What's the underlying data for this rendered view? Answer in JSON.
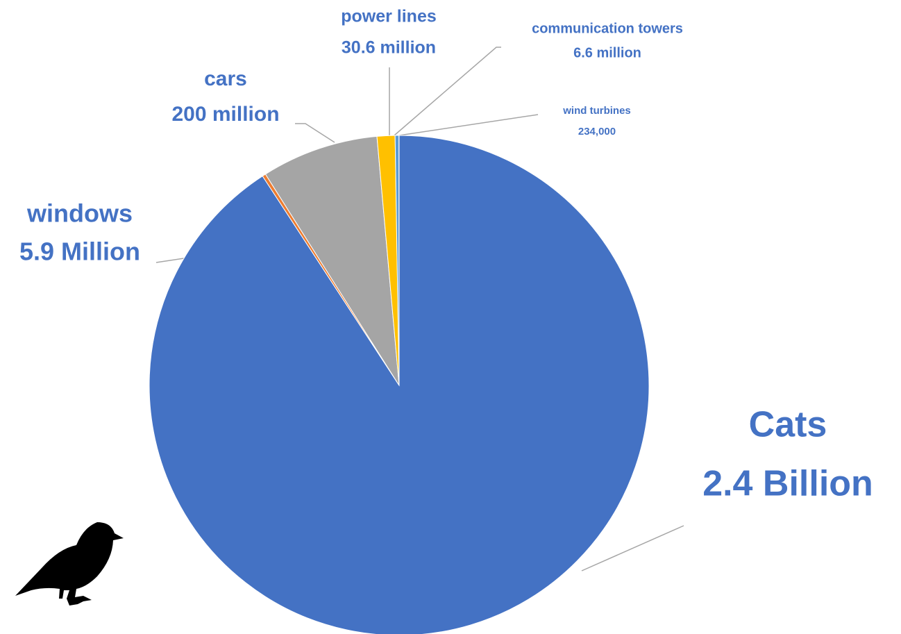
{
  "chart_data": {
    "type": "pie",
    "categories": [
      "Cats",
      "windows",
      "cars",
      "power lines",
      "communication towers",
      "wind turbines"
    ],
    "values": [
      2400000000,
      5900000,
      200000000,
      30600000,
      6600000,
      234000
    ],
    "value_labels": [
      "2.4 Billion",
      "5.9 Million",
      "200 million",
      "30.6 million",
      "6.6 million",
      "234,000"
    ],
    "colors": [
      "#4472c4",
      "#ed7d31",
      "#a5a5a5",
      "#ffc000",
      "#5b9bd5",
      "#70ad47"
    ]
  }
}
